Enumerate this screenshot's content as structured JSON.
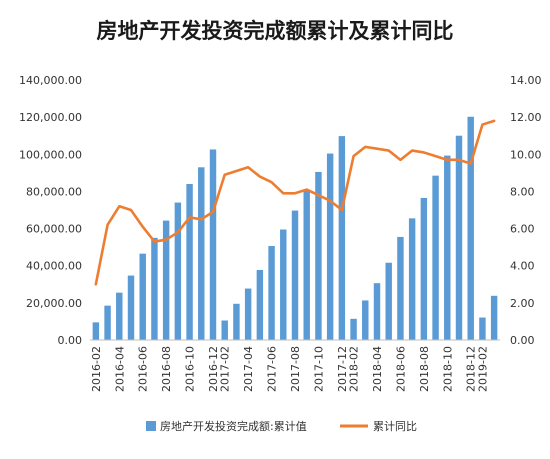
{
  "chart_data": {
    "type": "bar+line",
    "title": "房地产开发投资完成额累计及累计同比",
    "categories": [
      "2016-02",
      "2016-03",
      "2016-04",
      "2016-05",
      "2016-06",
      "2016-07",
      "2016-08",
      "2016-09",
      "2016-10",
      "2016-11",
      "2016-12",
      "2017-02",
      "2017-03",
      "2017-04",
      "2017-05",
      "2017-06",
      "2017-07",
      "2017-08",
      "2017-09",
      "2017-10",
      "2017-11",
      "2017-12",
      "2018-02",
      "2018-03",
      "2018-04",
      "2018-05",
      "2018-06",
      "2018-07",
      "2018-08",
      "2018-09",
      "2018-10",
      "2018-11",
      "2018-12",
      "2019-02",
      "2019-03"
    ],
    "x_tick_labels": [
      "2016-02",
      "2016-04",
      "2016-06",
      "2016-08",
      "2016-10",
      "2016-12",
      "2017-02",
      "2017-04",
      "2017-06",
      "2017-08",
      "2017-10",
      "2017-12",
      "2018-02",
      "2018-04",
      "2018-06",
      "2018-08",
      "2018-10",
      "2018-12",
      "2019-02"
    ],
    "y_left": {
      "ylim": [
        0,
        140000
      ],
      "ticks": [
        "0.00",
        "20,000.00",
        "40,000.00",
        "60,000.00",
        "80,000.00",
        "100,000.00",
        "120,000.00",
        "140,000.00"
      ]
    },
    "y_right": {
      "ylim": [
        0,
        14
      ],
      "ticks": [
        "0.00",
        "2.00",
        "4.00",
        "6.00",
        "8.00",
        "10.00",
        "12.00",
        "14.00"
      ]
    },
    "series": [
      {
        "name": "房地产开发投资完成额:累计值",
        "type": "bar",
        "axis": "left",
        "color": "#5b9bd5",
        "values": [
          9500,
          18500,
          25500,
          34700,
          46500,
          55000,
          64300,
          74000,
          84000,
          93000,
          102600,
          10500,
          19500,
          27700,
          37700,
          50600,
          59500,
          69700,
          80600,
          90500,
          100400,
          109800,
          11400,
          21300,
          30600,
          41600,
          55500,
          65500,
          76500,
          88500,
          99300,
          110000,
          120200,
          12100,
          23800
        ]
      },
      {
        "name": "累计同比",
        "type": "line",
        "axis": "right",
        "color": "#ed7d31",
        "values": [
          3.0,
          6.2,
          7.2,
          7.0,
          6.1,
          5.3,
          5.4,
          5.8,
          6.6,
          6.5,
          6.9,
          8.9,
          9.1,
          9.3,
          8.8,
          8.5,
          7.9,
          7.9,
          8.1,
          7.8,
          7.5,
          7.0,
          9.9,
          10.4,
          10.3,
          10.2,
          9.7,
          10.2,
          10.1,
          9.9,
          9.7,
          9.7,
          9.5,
          11.6,
          11.8
        ]
      }
    ],
    "legend": {
      "position": "bottom"
    },
    "grid": false
  }
}
